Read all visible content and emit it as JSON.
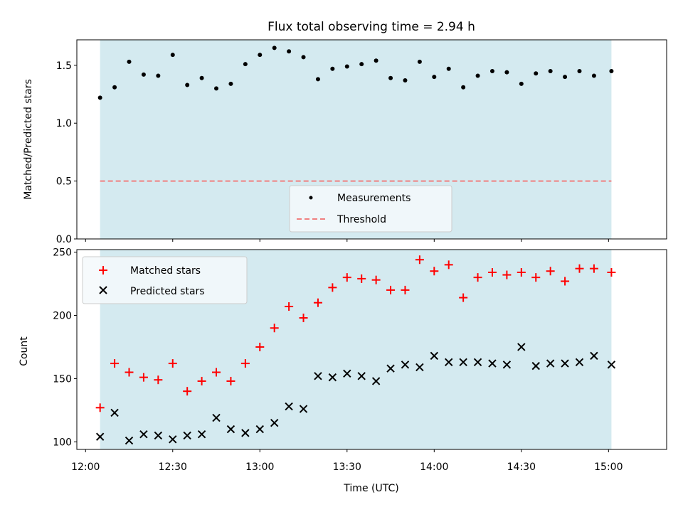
{
  "chart_data": [
    {
      "type": "scatter",
      "title": "Flux total observing time = 2.94 h",
      "ylabel": "Matched/Predicted stars",
      "xlabel": "",
      "ylim": [
        0,
        1.72
      ],
      "yticks": [
        0.0,
        0.5,
        1.0,
        1.5
      ],
      "ytick_labels": [
        "0.0",
        "0.5",
        "1.0",
        "1.5"
      ],
      "shaded_region": {
        "x_start": "12:05",
        "x_end": "15:01",
        "color": "#d4eaf0"
      },
      "legend_position": "lower-center",
      "series": [
        {
          "name": "Measurements",
          "marker": "dot",
          "color": "#000000",
          "x": [
            "12:05",
            "12:10",
            "12:15",
            "12:20",
            "12:25",
            "12:30",
            "12:35",
            "12:40",
            "12:45",
            "12:50",
            "12:55",
            "13:00",
            "13:05",
            "13:10",
            "13:15",
            "13:20",
            "13:25",
            "13:30",
            "13:35",
            "13:40",
            "13:45",
            "13:50",
            "13:55",
            "14:00",
            "14:05",
            "14:10",
            "14:15",
            "14:20",
            "14:25",
            "14:30",
            "14:35",
            "14:40",
            "14:45",
            "14:50",
            "14:55",
            "15:01"
          ],
          "y": [
            1.22,
            1.31,
            1.53,
            1.42,
            1.41,
            1.59,
            1.33,
            1.39,
            1.3,
            1.34,
            1.51,
            1.59,
            1.65,
            1.62,
            1.57,
            1.38,
            1.47,
            1.49,
            1.51,
            1.54,
            1.39,
            1.37,
            1.53,
            1.4,
            1.47,
            1.31,
            1.41,
            1.45,
            1.44,
            1.34,
            1.43,
            1.45,
            1.4,
            1.45,
            1.41,
            1.45
          ]
        },
        {
          "name": "Threshold",
          "marker": "dashed-line",
          "color": "#f08080",
          "y_constant": 0.5
        }
      ]
    },
    {
      "type": "scatter",
      "title": "",
      "xlabel": "Time (UTC)",
      "ylabel": "Count",
      "ylim": [
        94,
        252
      ],
      "yticks": [
        100,
        150,
        200,
        250
      ],
      "ytick_labels": [
        "100",
        "150",
        "200",
        "250"
      ],
      "xlim": [
        "11:57",
        "15:20"
      ],
      "xticks": [
        "12:00",
        "12:30",
        "13:00",
        "13:30",
        "14:00",
        "14:30",
        "15:00"
      ],
      "xtick_labels": [
        "12:00",
        "12:30",
        "13:00",
        "13:30",
        "14:00",
        "14:30",
        "15:00"
      ],
      "shaded_region": {
        "x_start": "12:05",
        "x_end": "15:01",
        "color": "#d4eaf0"
      },
      "legend_position": "top-left",
      "series": [
        {
          "name": "Matched stars",
          "marker": "plus",
          "color": "#ff0000",
          "x": [
            "12:05",
            "12:10",
            "12:15",
            "12:20",
            "12:25",
            "12:30",
            "12:35",
            "12:40",
            "12:45",
            "12:50",
            "12:55",
            "13:00",
            "13:05",
            "13:10",
            "13:15",
            "13:20",
            "13:25",
            "13:30",
            "13:35",
            "13:40",
            "13:45",
            "13:50",
            "13:55",
            "14:00",
            "14:05",
            "14:10",
            "14:15",
            "14:20",
            "14:25",
            "14:30",
            "14:35",
            "14:40",
            "14:45",
            "14:50",
            "14:55",
            "15:01"
          ],
          "y": [
            127,
            162,
            155,
            151,
            149,
            162,
            140,
            148,
            155,
            148,
            162,
            175,
            190,
            207,
            198,
            210,
            222,
            230,
            229,
            228,
            220,
            220,
            244,
            235,
            240,
            214,
            230,
            234,
            232,
            234,
            230,
            235,
            227,
            237,
            237,
            234
          ]
        },
        {
          "name": "Predicted stars",
          "marker": "x",
          "color": "#000000",
          "x": [
            "12:05",
            "12:10",
            "12:15",
            "12:20",
            "12:25",
            "12:30",
            "12:35",
            "12:40",
            "12:45",
            "12:50",
            "12:55",
            "13:00",
            "13:05",
            "13:10",
            "13:15",
            "13:20",
            "13:25",
            "13:30",
            "13:35",
            "13:40",
            "13:45",
            "13:50",
            "13:55",
            "14:00",
            "14:05",
            "14:10",
            "14:15",
            "14:20",
            "14:25",
            "14:30",
            "14:35",
            "14:40",
            "14:45",
            "14:50",
            "14:55",
            "15:01"
          ],
          "y": [
            104,
            123,
            101,
            106,
            105,
            102,
            105,
            106,
            119,
            110,
            107,
            110,
            115,
            128,
            126,
            152,
            151,
            154,
            152,
            148,
            158,
            161,
            159,
            168,
            163,
            163,
            163,
            162,
            161,
            175,
            160,
            162,
            162,
            163,
            168,
            161
          ]
        }
      ]
    }
  ]
}
